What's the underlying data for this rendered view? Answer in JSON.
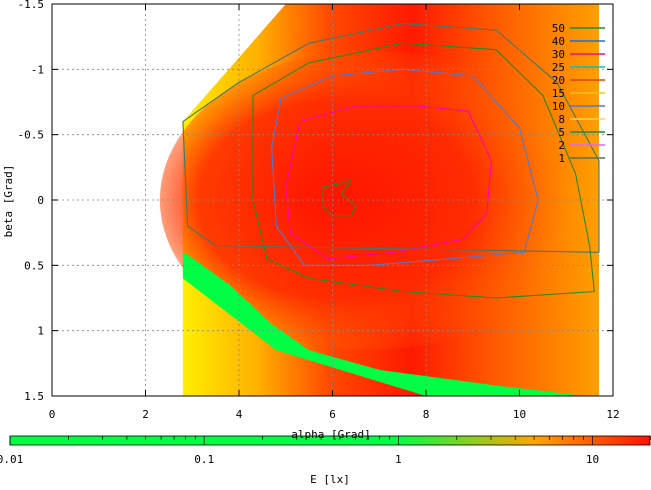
{
  "chart_data": {
    "type": "heatmap",
    "subtype": "contour-plot",
    "title": "",
    "xlabel": "alpha [Grad]",
    "ylabel": "beta [Grad]",
    "xlim": [
      0,
      12
    ],
    "ylim": [
      -1.5,
      1.5
    ],
    "y_axis_inverted": true,
    "x_ticks": [
      "0",
      "2",
      "4",
      "6",
      "8",
      "10",
      "12"
    ],
    "y_ticks": [
      "-1.5",
      "-1",
      "-0.5",
      "0",
      "0.5",
      "1",
      "1.5"
    ],
    "grid": true,
    "colorbar": {
      "label": "E [lx]",
      "scale": "log",
      "range": [
        0.01,
        20
      ],
      "tick_labels": [
        "0.01",
        "0.1",
        "1",
        "10"
      ],
      "colors": {
        "0.01": "#5522cc",
        "0.03": "#0000ff",
        "0.2": "#00ffff",
        "1": "#00ff44",
        "2.2": "#ffff00",
        "5": "#ffa500",
        "20": "#ff1100"
      }
    },
    "contour_levels": [
      50,
      40,
      30,
      25,
      20,
      15,
      10,
      8,
      5,
      2,
      1
    ],
    "legend": {
      "placement": "top-right",
      "entries": [
        {
          "name": "50",
          "color": "#228b22"
        },
        {
          "name": "40",
          "color": "#1e6fcf"
        },
        {
          "name": "30",
          "color": "#ff00aa"
        },
        {
          "name": "25",
          "color": "#00c0c0"
        },
        {
          "name": "20",
          "color": "#dd4400"
        },
        {
          "name": "15",
          "color": "#ffc020"
        },
        {
          "name": "10",
          "color": "#5577cc"
        },
        {
          "name": "8",
          "color": "#ffd060"
        },
        {
          "name": "5",
          "color": "#228b22"
        },
        {
          "name": "2",
          "color": "#dd66ff"
        },
        {
          "name": "1",
          "color": "#447766"
        }
      ]
    },
    "region_boundary": [
      [
        2.8,
        1.5
      ],
      [
        2.8,
        -0.6
      ],
      [
        5.0,
        -1.5
      ],
      [
        11.7,
        -1.5
      ],
      [
        11.7,
        1.5
      ],
      [
        2.8,
        1.5
      ]
    ],
    "green_region": [
      [
        2.8,
        0.4
      ],
      [
        2.9,
        0.42
      ],
      [
        3.8,
        0.65
      ],
      [
        4.7,
        0.95
      ],
      [
        5.5,
        1.15
      ],
      [
        7.0,
        1.3
      ],
      [
        9.5,
        1.42
      ],
      [
        11.4,
        1.5
      ],
      [
        8.0,
        1.5
      ],
      [
        4.8,
        1.15
      ],
      [
        2.8,
        0.6
      ]
    ],
    "maximum": {
      "x": 6.1,
      "y": 0.0,
      "value": 50
    },
    "contours": [
      {
        "level": 50,
        "points": [
          [
            5.8,
            -0.1
          ],
          [
            6.1,
            -0.12
          ],
          [
            6.4,
            -0.15
          ],
          [
            6.2,
            -0.05
          ],
          [
            6.5,
            0.05
          ],
          [
            6.4,
            0.12
          ],
          [
            6.0,
            0.12
          ],
          [
            5.8,
            0.05
          ]
        ]
      },
      {
        "level": 30,
        "points": [
          [
            5.3,
            -0.6
          ],
          [
            6.5,
            -0.72
          ],
          [
            7.8,
            -0.72
          ],
          [
            8.9,
            -0.68
          ],
          [
            9.4,
            -0.3
          ],
          [
            9.3,
            0.1
          ],
          [
            8.8,
            0.3
          ],
          [
            7.3,
            0.4
          ],
          [
            5.9,
            0.45
          ],
          [
            5.1,
            0.25
          ],
          [
            5.0,
            -0.1
          ]
        ]
      },
      {
        "level": 10,
        "points": [
          [
            4.9,
            -0.78
          ],
          [
            6.0,
            -0.95
          ],
          [
            7.5,
            -1.0
          ],
          [
            9.0,
            -0.95
          ],
          [
            10.0,
            -0.55
          ],
          [
            10.4,
            0.0
          ],
          [
            10.1,
            0.4
          ],
          [
            8.5,
            0.45
          ],
          [
            6.8,
            0.5
          ],
          [
            5.4,
            0.5
          ],
          [
            4.8,
            0.2
          ],
          [
            4.7,
            -0.4
          ]
        ]
      },
      {
        "level": 5,
        "points": [
          [
            4.3,
            -0.8
          ],
          [
            5.5,
            -1.05
          ],
          [
            7.5,
            -1.2
          ],
          [
            9.5,
            -1.15
          ],
          [
            10.5,
            -0.8
          ],
          [
            11.2,
            -0.2
          ],
          [
            11.5,
            0.35
          ],
          [
            11.6,
            0.7
          ],
          [
            9.5,
            0.75
          ],
          [
            7.5,
            0.7
          ],
          [
            5.5,
            0.6
          ],
          [
            4.6,
            0.45
          ],
          [
            4.3,
            0.0
          ]
        ]
      },
      {
        "level": 1,
        "points": [
          [
            2.8,
            -0.6
          ],
          [
            4.0,
            -0.9
          ],
          [
            5.5,
            -1.2
          ],
          [
            7.5,
            -1.35
          ],
          [
            9.5,
            -1.3
          ],
          [
            10.8,
            -0.9
          ],
          [
            11.7,
            -0.3
          ],
          [
            11.7,
            0.4
          ],
          [
            3.5,
            0.35
          ],
          [
            2.9,
            0.2
          ]
        ]
      }
    ]
  }
}
